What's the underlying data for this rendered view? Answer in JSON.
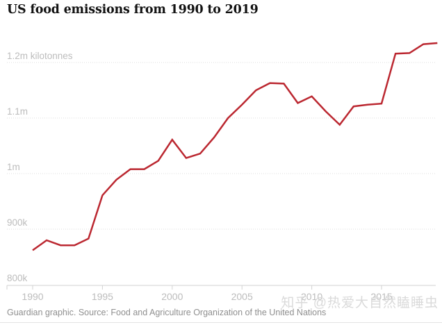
{
  "page": {
    "title": "US food emissions from 1990 to 2019",
    "source": "Guardian graphic. Source: Food and Agriculture Organization of the United Nations",
    "watermark": "知乎 @热爱大自然瞌睡虫"
  },
  "colors": {
    "line": "#bb2730",
    "grid": "#dcdcdc",
    "axis": "#d2d2d2",
    "title_text": "#121212",
    "axis_text": "#bcbcbc",
    "footer_text": "#8f8f8f",
    "watermark_text": "#dadada"
  },
  "chart_data": {
    "type": "line",
    "title": "US food emissions from 1990 to 2019",
    "unit": "kilotonnes",
    "xlabel": "",
    "ylabel": "kilotonnes",
    "legend": "none",
    "grid": "horizontal-dotted",
    "xlim": [
      1990,
      2019
    ],
    "ylim": [
      800000,
      1260000
    ],
    "x": [
      1990,
      1991,
      1992,
      1993,
      1994,
      1995,
      1996,
      1997,
      1998,
      1999,
      2000,
      2001,
      2002,
      2003,
      2004,
      2005,
      2006,
      2007,
      2008,
      2009,
      2010,
      2011,
      2012,
      2013,
      2014,
      2015,
      2016,
      2017,
      2018,
      2019
    ],
    "values": [
      862000,
      880000,
      871000,
      871000,
      883000,
      961000,
      989000,
      1008000,
      1008000,
      1023000,
      1061000,
      1028000,
      1036000,
      1065000,
      1100000,
      1124000,
      1150000,
      1163000,
      1162000,
      1127000,
      1139000,
      1112000,
      1088000,
      1121000,
      1124000,
      1126000,
      1216000,
      1217000,
      1233000,
      1235000
    ],
    "x_ticks": [
      {
        "value": 1990,
        "label": "1990"
      },
      {
        "value": 1995,
        "label": "1995"
      },
      {
        "value": 2000,
        "label": "2000"
      },
      {
        "value": 2005,
        "label": "2005"
      },
      {
        "value": 2010,
        "label": "2010"
      },
      {
        "value": 2015,
        "label": "2015"
      }
    ],
    "y_ticks": [
      {
        "value": 800000,
        "label": "800k",
        "baseline": true
      },
      {
        "value": 900000,
        "label": "900k",
        "baseline": false
      },
      {
        "value": 1000000,
        "label": "1m",
        "baseline": false
      },
      {
        "value": 1100000,
        "label": "1.1m",
        "baseline": false
      },
      {
        "value": 1200000,
        "label": "1.2m kilotonnes",
        "baseline": false
      }
    ]
  }
}
